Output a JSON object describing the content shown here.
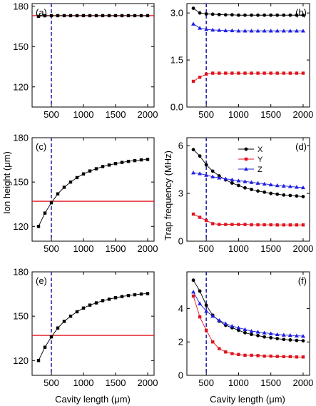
{
  "figure": {
    "xlabel": "Cavity length (μm)",
    "ylabel_height": "Ion height (μm)",
    "ylabel_freq": "Trap frequency (MHz)"
  },
  "colors": {
    "X": "#000000",
    "Y": "#e0141e",
    "Z": "#1f1fe0",
    "hline": "#e0141e",
    "vline": "#1a1aa0"
  },
  "chart_data": [
    {
      "id": "a",
      "panel_label": "(a)",
      "type": "line",
      "xlim": [
        200,
        2100
      ],
      "ylim": [
        105,
        182
      ],
      "yticks": [
        120,
        150,
        180
      ],
      "xticks": [
        500,
        1000,
        1500,
        2000
      ],
      "show_xticklabels": true,
      "vline": 500,
      "hline": 173,
      "series": [
        {
          "key": "X",
          "marker": "square",
          "x": [
            300,
            400,
            500,
            600,
            700,
            800,
            900,
            1000,
            1100,
            1200,
            1300,
            1400,
            1500,
            1600,
            1700,
            1800,
            1900,
            2000
          ],
          "y": [
            172.5,
            173,
            173,
            173,
            173,
            173,
            173,
            173,
            173,
            173,
            173,
            173,
            173,
            173,
            173,
            173,
            173,
            173
          ]
        }
      ]
    },
    {
      "id": "b",
      "panel_label": "(b)",
      "type": "line",
      "xlim": [
        200,
        2100
      ],
      "ylim": [
        0,
        3.3
      ],
      "yticks": [
        0.0,
        1.5,
        3.0
      ],
      "ytick_labels": [
        "0.0",
        "1.5",
        "3.0"
      ],
      "xticks": [
        500,
        1000,
        1500,
        2000
      ],
      "show_xticklabels": true,
      "vline": 500,
      "series": [
        {
          "key": "X",
          "marker": "circle",
          "x": [
            300,
            400,
            500,
            600,
            700,
            800,
            900,
            1000,
            1100,
            1200,
            1300,
            1400,
            1500,
            1600,
            1700,
            1800,
            1900,
            2000
          ],
          "y": [
            3.15,
            3.0,
            2.97,
            2.96,
            2.95,
            2.94,
            2.94,
            2.93,
            2.93,
            2.93,
            2.93,
            2.93,
            2.93,
            2.93,
            2.93,
            2.93,
            2.93,
            2.93
          ]
        },
        {
          "key": "Z",
          "marker": "triangle",
          "x": [
            300,
            400,
            500,
            600,
            700,
            800,
            900,
            1000,
            1100,
            1200,
            1300,
            1400,
            1500,
            1600,
            1700,
            1800,
            1900,
            2000
          ],
          "y": [
            2.65,
            2.52,
            2.48,
            2.46,
            2.45,
            2.44,
            2.44,
            2.43,
            2.43,
            2.43,
            2.43,
            2.43,
            2.43,
            2.43,
            2.43,
            2.43,
            2.43,
            2.43
          ]
        },
        {
          "key": "Y",
          "marker": "square",
          "x": [
            300,
            400,
            500,
            600,
            700,
            800,
            900,
            1000,
            1100,
            1200,
            1300,
            1400,
            1500,
            1600,
            1700,
            1800,
            1900,
            2000
          ],
          "y": [
            0.82,
            0.95,
            1.05,
            1.08,
            1.08,
            1.08,
            1.08,
            1.08,
            1.08,
            1.08,
            1.08,
            1.08,
            1.08,
            1.08,
            1.08,
            1.08,
            1.08,
            1.08
          ]
        }
      ]
    },
    {
      "id": "c",
      "panel_label": "(c)",
      "type": "line",
      "xlim": [
        200,
        2100
      ],
      "ylim": [
        110,
        180
      ],
      "yticks": [
        120,
        150,
        180
      ],
      "xticks": [
        500,
        1000,
        1500,
        2000
      ],
      "show_xticklabels": true,
      "vline": 500,
      "hline": 137,
      "series": [
        {
          "key": "X",
          "marker": "square",
          "x": [
            300,
            400,
            500,
            600,
            700,
            800,
            900,
            1000,
            1100,
            1200,
            1300,
            1400,
            1500,
            1600,
            1700,
            1800,
            1900,
            2000
          ],
          "y": [
            120,
            129,
            136,
            142,
            146.5,
            150,
            153,
            155.5,
            157.5,
            159,
            160.5,
            161.5,
            162.5,
            163.3,
            164,
            164.5,
            165,
            165.3
          ]
        }
      ]
    },
    {
      "id": "d",
      "panel_label": "(d)",
      "type": "line",
      "xlim": [
        200,
        2100
      ],
      "ylim": [
        0,
        6.5
      ],
      "yticks": [
        0,
        3,
        6
      ],
      "xticks": [
        500,
        1000,
        1500,
        2000
      ],
      "show_xticklabels": true,
      "vline": 500,
      "legend": {
        "position": "top-center",
        "entries": [
          "X",
          "Y",
          "Z"
        ]
      },
      "series": [
        {
          "key": "X",
          "marker": "circle",
          "x": [
            300,
            400,
            500,
            600,
            700,
            800,
            900,
            1000,
            1100,
            1200,
            1300,
            1400,
            1500,
            1600,
            1700,
            1800,
            1900,
            2000
          ],
          "y": [
            5.75,
            5.35,
            4.8,
            4.4,
            4.1,
            3.85,
            3.65,
            3.5,
            3.35,
            3.25,
            3.15,
            3.08,
            3.0,
            2.95,
            2.9,
            2.87,
            2.84,
            2.8
          ]
        },
        {
          "key": "Z",
          "marker": "triangle",
          "x": [
            300,
            400,
            500,
            600,
            700,
            800,
            900,
            1000,
            1100,
            1200,
            1300,
            1400,
            1500,
            1600,
            1700,
            1800,
            1900,
            2000
          ],
          "y": [
            4.3,
            4.25,
            4.15,
            4.05,
            3.98,
            3.92,
            3.86,
            3.8,
            3.75,
            3.7,
            3.65,
            3.6,
            3.55,
            3.5,
            3.47,
            3.44,
            3.4,
            3.37
          ]
        },
        {
          "key": "Y",
          "marker": "square",
          "x": [
            300,
            400,
            500,
            600,
            700,
            800,
            900,
            1000,
            1100,
            1200,
            1300,
            1400,
            1500,
            1600,
            1700,
            1800,
            1900,
            2000
          ],
          "y": [
            1.7,
            1.5,
            1.3,
            1.1,
            1.05,
            1.05,
            1.05,
            1.05,
            1.05,
            1.03,
            1.03,
            1.03,
            1.03,
            1.02,
            1.02,
            1.02,
            1.02,
            1.02
          ]
        }
      ]
    },
    {
      "id": "e",
      "panel_label": "(e)",
      "type": "line",
      "xlim": [
        200,
        2100
      ],
      "ylim": [
        110,
        180
      ],
      "yticks": [
        120,
        150,
        180
      ],
      "xticks": [
        500,
        1000,
        1500,
        2000
      ],
      "show_xticklabels": true,
      "vline": 500,
      "hline": 137,
      "series": [
        {
          "key": "X",
          "marker": "square",
          "x": [
            300,
            400,
            500,
            600,
            700,
            800,
            900,
            1000,
            1100,
            1200,
            1300,
            1400,
            1500,
            1600,
            1700,
            1800,
            1900,
            2000
          ],
          "y": [
            120,
            129,
            136,
            142,
            146.5,
            150,
            153,
            155.5,
            157.5,
            159,
            160.5,
            161.5,
            162.5,
            163.3,
            164,
            164.5,
            165,
            165.3
          ]
        }
      ]
    },
    {
      "id": "f",
      "panel_label": "(f)",
      "type": "line",
      "xlim": [
        200,
        2100
      ],
      "ylim": [
        0,
        6.2
      ],
      "yticks": [
        0,
        2,
        4
      ],
      "xticks": [
        500,
        1000,
        1500,
        2000
      ],
      "show_xticklabels": true,
      "vline": 500,
      "series": [
        {
          "key": "X",
          "marker": "circle",
          "x": [
            300,
            400,
            500,
            600,
            700,
            800,
            900,
            1000,
            1100,
            1200,
            1300,
            1400,
            1500,
            1600,
            1700,
            1800,
            1900,
            2000
          ],
          "y": [
            5.7,
            5.05,
            4.2,
            3.6,
            3.25,
            3.0,
            2.85,
            2.7,
            2.55,
            2.45,
            2.38,
            2.3,
            2.25,
            2.2,
            2.15,
            2.12,
            2.09,
            2.07
          ]
        },
        {
          "key": "Z",
          "marker": "triangle",
          "x": [
            300,
            400,
            500,
            600,
            700,
            800,
            900,
            1000,
            1100,
            1200,
            1300,
            1400,
            1500,
            1600,
            1700,
            1800,
            1900,
            2000
          ],
          "y": [
            5.0,
            4.3,
            3.85,
            3.55,
            3.3,
            3.1,
            2.95,
            2.85,
            2.75,
            2.65,
            2.6,
            2.55,
            2.5,
            2.45,
            2.42,
            2.4,
            2.37,
            2.35
          ]
        },
        {
          "key": "Y",
          "marker": "square",
          "x": [
            300,
            400,
            500,
            600,
            700,
            800,
            900,
            1000,
            1100,
            1200,
            1300,
            1400,
            1500,
            1600,
            1700,
            1800,
            1900,
            2000
          ],
          "y": [
            4.75,
            3.5,
            2.7,
            2.0,
            1.6,
            1.4,
            1.3,
            1.25,
            1.2,
            1.2,
            1.18,
            1.15,
            1.15,
            1.13,
            1.12,
            1.12,
            1.1,
            1.1
          ]
        }
      ]
    }
  ]
}
